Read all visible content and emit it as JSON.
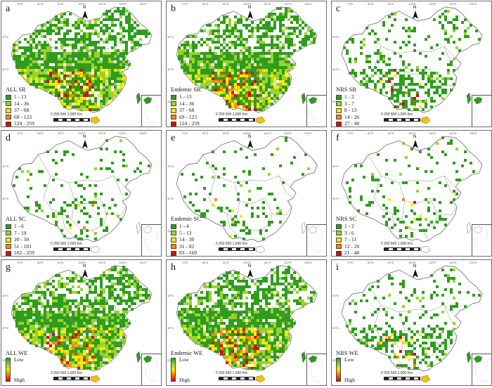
{
  "panels": [
    {
      "letter": "a",
      "title": "ALL SR",
      "type": "classes",
      "classes": [
        "1 - 13",
        "14 - 36",
        "37 - 68",
        "69 - 123",
        "124 - 259"
      ],
      "density": "high"
    },
    {
      "letter": "b",
      "title": "Endemic SR",
      "type": "classes",
      "classes": [
        "1 - 13",
        "14 - 36",
        "37 - 68",
        "69 - 123",
        "124 - 259"
      ],
      "density": "high"
    },
    {
      "letter": "c",
      "title": "NRS SR",
      "type": "classes",
      "classes": [
        "1 - 2",
        "3 - 7",
        "8 - 13",
        "14 - 26",
        "27 - 40"
      ],
      "density": "low"
    },
    {
      "letter": "d",
      "title": "ALL SC",
      "type": "classes",
      "classes": [
        "1 - 6",
        "7 - 19",
        "20 - 50",
        "51 - 101",
        "102 - 259"
      ],
      "density": "sparse"
    },
    {
      "letter": "e",
      "title": "Endemic SC",
      "type": "classes",
      "classes": [
        "1 - 4",
        "5 - 13",
        "14 - 30",
        "31 - 82",
        "83 - 169"
      ],
      "density": "sparse"
    },
    {
      "letter": "f",
      "title": "NRS SC",
      "type": "classes",
      "classes": [
        "1 - 2",
        "3 - 6",
        "7 - 11",
        "12 - 20",
        "21 - 40"
      ],
      "density": "sparse"
    },
    {
      "letter": "g",
      "title": "ALL WE",
      "type": "gradient",
      "low": "Low",
      "high": "High",
      "density": "high"
    },
    {
      "letter": "h",
      "title": "Endemic WE",
      "type": "gradient",
      "low": "Low",
      "high": "High",
      "density": "high"
    },
    {
      "letter": "i",
      "title": "NRS WE",
      "type": "gradient",
      "low": "Low",
      "high": "High",
      "density": "low"
    }
  ],
  "class_colors": [
    "#2e9d1d",
    "#9bd32e",
    "#ffe900",
    "#ff8a00",
    "#e60000"
  ],
  "north_label": "N",
  "scale_label": "0  250  500       1,000  Km",
  "lon_ticks": [
    "70°E",
    "80°E",
    "90°E",
    "100°E",
    "110°E",
    "120°E",
    "130°E"
  ],
  "lat_ticks": [
    "40°N",
    "30°N",
    "20°N"
  ]
}
